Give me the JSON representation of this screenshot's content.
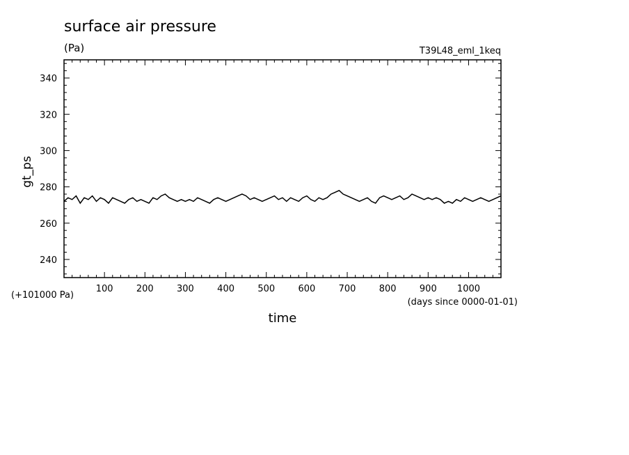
{
  "chart_data": {
    "type": "line",
    "title": "surface air pressure",
    "units": "(Pa)",
    "run_label": "T39L48_eml_1keq",
    "ylabel": "gt_ps",
    "xlabel": "time",
    "y_offset_label": "(+101000 Pa)",
    "x_units_label": "(days since 0000-01-01)",
    "xlim": [
      0,
      1080
    ],
    "ylim": [
      230,
      350
    ],
    "x_ticks": [
      100,
      200,
      300,
      400,
      500,
      600,
      700,
      800,
      900,
      1000
    ],
    "x_tick_labels": [
      "100",
      "200",
      "300",
      "400",
      "500",
      "600",
      "700",
      "800",
      "900",
      "1000"
    ],
    "y_ticks": [
      240,
      260,
      280,
      300,
      320,
      340
    ],
    "y_tick_labels": [
      "240",
      "260",
      "280",
      "300",
      "320",
      "340"
    ],
    "grid": false,
    "line_color": "#000000",
    "series": [
      {
        "x": [
          0,
          10,
          20,
          30,
          40,
          50,
          60,
          70,
          80,
          90,
          100,
          110,
          120,
          130,
          140,
          150,
          160,
          170,
          180,
          190,
          200,
          210,
          220,
          230,
          240,
          250,
          260,
          270,
          280,
          290,
          300,
          310,
          320,
          330,
          340,
          350,
          360,
          370,
          380,
          390,
          400,
          410,
          420,
          430,
          440,
          450,
          460,
          470,
          480,
          490,
          500,
          510,
          520,
          530,
          540,
          550,
          560,
          570,
          580,
          590,
          600,
          610,
          620,
          630,
          640,
          650,
          660,
          670,
          680,
          690,
          700,
          710,
          720,
          730,
          740,
          750,
          760,
          770,
          780,
          790,
          800,
          810,
          820,
          830,
          840,
          850,
          860,
          870,
          880,
          890,
          900,
          910,
          920,
          930,
          940,
          950,
          960,
          970,
          980,
          990,
          1000,
          1010,
          1020,
          1030,
          1040,
          1050,
          1060,
          1070,
          1080
        ],
        "y": [
          272,
          274,
          273,
          275,
          271,
          274,
          273,
          275,
          272,
          274,
          273,
          271,
          274,
          273,
          272,
          271,
          273,
          274,
          272,
          273,
          272,
          271,
          274,
          273,
          275,
          276,
          274,
          273,
          272,
          273,
          272,
          273,
          272,
          274,
          273,
          272,
          271,
          273,
          274,
          273,
          272,
          273,
          274,
          275,
          276,
          275,
          273,
          274,
          273,
          272,
          273,
          274,
          275,
          273,
          274,
          272,
          274,
          273,
          272,
          274,
          275,
          273,
          272,
          274,
          273,
          274,
          276,
          277,
          278,
          276,
          275,
          274,
          273,
          272,
          273,
          274,
          272,
          271,
          274,
          275,
          274,
          273,
          274,
          275,
          273,
          274,
          276,
          275,
          274,
          273,
          274,
          273,
          274,
          273,
          271,
          272,
          271,
          273,
          272,
          274,
          273,
          272,
          273,
          274,
          273,
          272,
          273,
          274,
          275
        ]
      }
    ]
  }
}
